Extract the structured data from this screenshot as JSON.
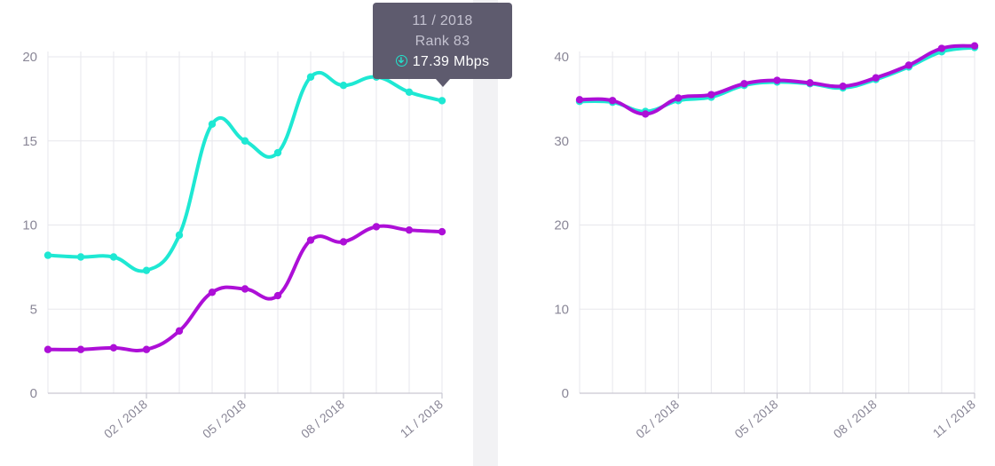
{
  "colors": {
    "teal": "#1ee8d3",
    "purple": "#ad0fd7"
  },
  "tooltip": {
    "date": "11 / 2018",
    "rank": "Rank 83",
    "value": "17.39 Mbps",
    "icon": "download-arrow-icon"
  },
  "chart_data": [
    {
      "type": "line",
      "x": [
        "11/2017",
        "12/2017",
        "01/2018",
        "02/2018",
        "03/2018",
        "04/2018",
        "05/2018",
        "06/2018",
        "07/2018",
        "08/2018",
        "09/2018",
        "10/2018",
        "11/2018"
      ],
      "xtick_labels": [
        "02 / 2018",
        "05 / 2018",
        "08 / 2018",
        "11 / 2018"
      ],
      "yticks": [
        "0",
        "5",
        "10",
        "15",
        "20"
      ],
      "ylim": [
        0,
        20
      ],
      "grid": true,
      "series": [
        {
          "color": "#1ee8d3",
          "values": [
            8.2,
            8.1,
            8.1,
            7.3,
            9.4,
            16.0,
            15.0,
            14.3,
            18.8,
            18.3,
            18.8,
            17.9,
            17.39
          ]
        },
        {
          "color": "#ad0fd7",
          "values": [
            2.6,
            2.6,
            2.7,
            2.6,
            3.7,
            6.0,
            6.2,
            5.8,
            9.1,
            9.0,
            9.9,
            9.7,
            9.6
          ]
        }
      ]
    },
    {
      "type": "line",
      "x": [
        "11/2017",
        "12/2017",
        "01/2018",
        "02/2018",
        "03/2018",
        "04/2018",
        "05/2018",
        "06/2018",
        "07/2018",
        "08/2018",
        "09/2018",
        "10/2018",
        "11/2018"
      ],
      "xtick_labels": [
        "02 / 2018",
        "05 / 2018",
        "08 / 2018",
        "11 / 2018"
      ],
      "yticks": [
        "0",
        "10",
        "20",
        "30",
        "40"
      ],
      "ylim": [
        0,
        40
      ],
      "grid": true,
      "series": [
        {
          "color": "#1ee8d3",
          "values": [
            34.7,
            34.6,
            33.5,
            34.8,
            35.2,
            36.6,
            37.0,
            36.8,
            36.3,
            37.3,
            38.8,
            40.6,
            41.1
          ]
        },
        {
          "color": "#ad0fd7",
          "values": [
            34.9,
            34.8,
            33.2,
            35.1,
            35.5,
            36.8,
            37.2,
            36.9,
            36.5,
            37.5,
            39.0,
            41.0,
            41.3
          ]
        }
      ]
    }
  ]
}
